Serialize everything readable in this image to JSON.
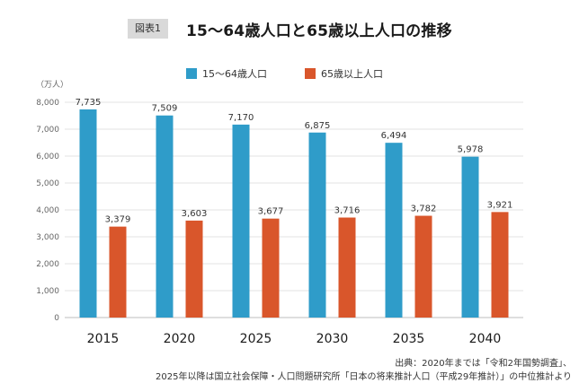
{
  "header": {
    "badge": "図表1",
    "title": "15〜64歳人口と65歳以上人口の推移"
  },
  "chart_data": {
    "type": "bar",
    "title": "15〜64歳人口と65歳以上人口の推移",
    "ylabel": "（万人）",
    "xlabel": "",
    "ylim": [
      0,
      8000
    ],
    "yticks": [
      0,
      1000,
      2000,
      3000,
      4000,
      5000,
      6000,
      7000,
      8000
    ],
    "ytick_labels": [
      "0",
      "1,000",
      "2,000",
      "3,000",
      "4,000",
      "5,000",
      "6,000",
      "7,000",
      "8,000"
    ],
    "categories": [
      "2015",
      "2020",
      "2025",
      "2030",
      "2035",
      "2040"
    ],
    "series": [
      {
        "name": "15〜64歳人口",
        "color": "#2f9cc9",
        "values": [
          7735,
          7509,
          7170,
          6875,
          6494,
          5978
        ],
        "labels": [
          "7,735",
          "7,509",
          "7,170",
          "6,875",
          "6,494",
          "5,978"
        ]
      },
      {
        "name": "65歳以上人口",
        "color": "#d9562b",
        "values": [
          3379,
          3603,
          3677,
          3716,
          3782,
          3921
        ],
        "labels": [
          "3,379",
          "3,603",
          "3,677",
          "3,716",
          "3,782",
          "3,921"
        ]
      }
    ],
    "grid": true,
    "legend_position": "top-center"
  },
  "source": {
    "line1": "出典：2020年までは「令和2年国勢調査」、",
    "line2": "2025年以降は国立社会保障・人口問題研究所「日本の将来推計人口（平成29年推計）」の中位推計より"
  }
}
